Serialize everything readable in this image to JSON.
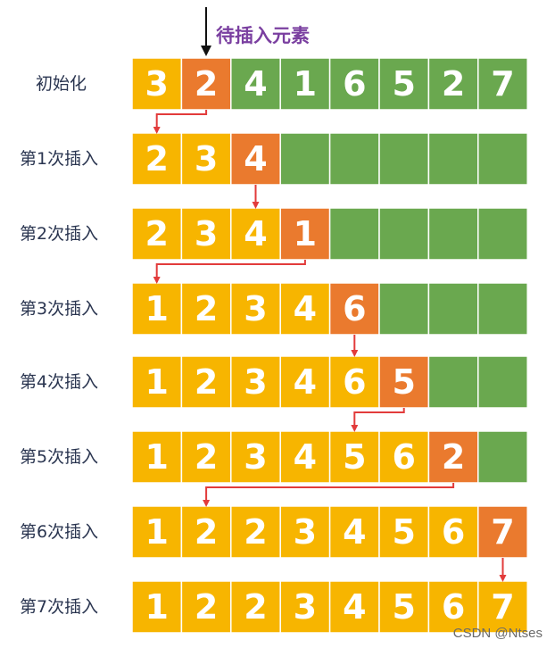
{
  "pending_label": "待插入元素",
  "watermark": "CSDN @Ntses",
  "colors": {
    "sorted": "#f7b500",
    "current": "#ea7a2e",
    "unsorted": "#6aa84f",
    "cell_border": "#ffffff",
    "arrow_red": "#e23b3b",
    "arrow_black": "#111111",
    "digit": "#ffffff"
  },
  "rows": [
    {
      "label": "初始化",
      "cells": [
        {
          "v": "3",
          "s": "sorted"
        },
        {
          "v": "2",
          "s": "current"
        },
        {
          "v": "4",
          "s": "unsorted"
        },
        {
          "v": "1",
          "s": "unsorted"
        },
        {
          "v": "6",
          "s": "unsorted"
        },
        {
          "v": "5",
          "s": "unsorted"
        },
        {
          "v": "2",
          "s": "unsorted"
        },
        {
          "v": "7",
          "s": "unsorted"
        }
      ]
    },
    {
      "label": "第1次插入",
      "cells": [
        {
          "v": "2",
          "s": "sorted"
        },
        {
          "v": "3",
          "s": "sorted"
        },
        {
          "v": "4",
          "s": "current"
        },
        {
          "v": "",
          "s": "unsorted"
        },
        {
          "v": "",
          "s": "unsorted"
        },
        {
          "v": "",
          "s": "unsorted"
        },
        {
          "v": "",
          "s": "unsorted"
        },
        {
          "v": "",
          "s": "unsorted"
        }
      ]
    },
    {
      "label": "第2次插入",
      "cells": [
        {
          "v": "2",
          "s": "sorted"
        },
        {
          "v": "3",
          "s": "sorted"
        },
        {
          "v": "4",
          "s": "sorted"
        },
        {
          "v": "1",
          "s": "current"
        },
        {
          "v": "",
          "s": "unsorted"
        },
        {
          "v": "",
          "s": "unsorted"
        },
        {
          "v": "",
          "s": "unsorted"
        },
        {
          "v": "",
          "s": "unsorted"
        }
      ]
    },
    {
      "label": "第3次插入",
      "cells": [
        {
          "v": "1",
          "s": "sorted"
        },
        {
          "v": "2",
          "s": "sorted"
        },
        {
          "v": "3",
          "s": "sorted"
        },
        {
          "v": "4",
          "s": "sorted"
        },
        {
          "v": "6",
          "s": "current"
        },
        {
          "v": "",
          "s": "unsorted"
        },
        {
          "v": "",
          "s": "unsorted"
        },
        {
          "v": "",
          "s": "unsorted"
        }
      ]
    },
    {
      "label": "第4次插入",
      "cells": [
        {
          "v": "1",
          "s": "sorted"
        },
        {
          "v": "2",
          "s": "sorted"
        },
        {
          "v": "3",
          "s": "sorted"
        },
        {
          "v": "4",
          "s": "sorted"
        },
        {
          "v": "6",
          "s": "sorted"
        },
        {
          "v": "5",
          "s": "current"
        },
        {
          "v": "",
          "s": "unsorted"
        },
        {
          "v": "",
          "s": "unsorted"
        }
      ]
    },
    {
      "label": "第5次插入",
      "cells": [
        {
          "v": "1",
          "s": "sorted"
        },
        {
          "v": "2",
          "s": "sorted"
        },
        {
          "v": "3",
          "s": "sorted"
        },
        {
          "v": "4",
          "s": "sorted"
        },
        {
          "v": "5",
          "s": "sorted"
        },
        {
          "v": "6",
          "s": "sorted"
        },
        {
          "v": "2",
          "s": "current"
        },
        {
          "v": "",
          "s": "unsorted"
        }
      ]
    },
    {
      "label": "第6次插入",
      "cells": [
        {
          "v": "1",
          "s": "sorted"
        },
        {
          "v": "2",
          "s": "sorted"
        },
        {
          "v": "2",
          "s": "sorted"
        },
        {
          "v": "3",
          "s": "sorted"
        },
        {
          "v": "4",
          "s": "sorted"
        },
        {
          "v": "5",
          "s": "sorted"
        },
        {
          "v": "6",
          "s": "sorted"
        },
        {
          "v": "7",
          "s": "current"
        }
      ]
    },
    {
      "label": "第7次插入",
      "cells": [
        {
          "v": "1",
          "s": "sorted"
        },
        {
          "v": "2",
          "s": "sorted"
        },
        {
          "v": "2",
          "s": "sorted"
        },
        {
          "v": "3",
          "s": "sorted"
        },
        {
          "v": "4",
          "s": "sorted"
        },
        {
          "v": "5",
          "s": "sorted"
        },
        {
          "v": "6",
          "s": "sorted"
        },
        {
          "v": "7",
          "s": "sorted"
        }
      ]
    }
  ],
  "insert_moves": [
    {
      "from_row": 0,
      "from_col": 1,
      "to_col": 0
    },
    {
      "from_row": 1,
      "from_col": 2,
      "to_col": 2
    },
    {
      "from_row": 2,
      "from_col": 3,
      "to_col": 0
    },
    {
      "from_row": 3,
      "from_col": 4,
      "to_col": 4
    },
    {
      "from_row": 4,
      "from_col": 5,
      "to_col": 4
    },
    {
      "from_row": 5,
      "from_col": 6,
      "to_col": 1
    },
    {
      "from_row": 6,
      "from_col": 7,
      "to_col": 7
    }
  ]
}
